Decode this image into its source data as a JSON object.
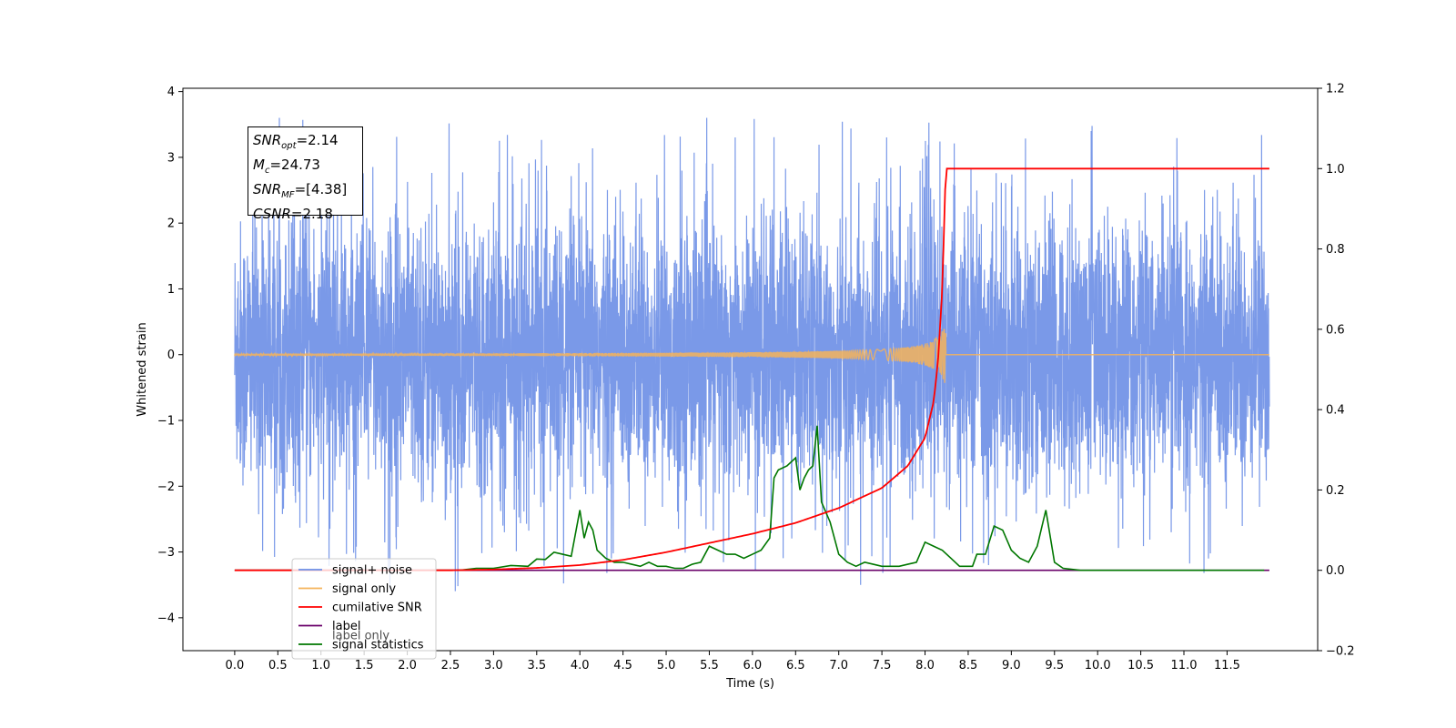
{
  "chart_data": {
    "type": "line",
    "xlabel": "Time (s)",
    "ylabel_left": "Whitened strain",
    "ylabel_right": "",
    "xlim": [
      -0.6,
      12.55
    ],
    "ylim_left": [
      -4.5,
      4.05
    ],
    "ylim_right": [
      -0.2,
      1.2
    ],
    "x_ticks": [
      "0.0",
      "0.5",
      "1.0",
      "1.5",
      "2.0",
      "2.5",
      "3.0",
      "3.5",
      "4.0",
      "4.5",
      "5.0",
      "5.5",
      "6.0",
      "6.5",
      "7.0",
      "7.5",
      "8.0",
      "8.5",
      "9.0",
      "9.5",
      "10.0",
      "10.5",
      "11.0",
      "11.5"
    ],
    "y_ticks_left": [
      "4",
      "3",
      "2",
      "1",
      "0",
      "−1",
      "−2",
      "−3",
      "−4"
    ],
    "y_ticks_right": [
      "1.2",
      "1.0",
      "0.8",
      "0.6",
      "0.4",
      "0.2",
      "0.0",
      "−0.2"
    ],
    "grid": false,
    "legend_position": "lower-left",
    "annotation": {
      "snr_opt_label": "SNR",
      "snr_opt_sub": "opt",
      "snr_opt_value": "=2.14",
      "mc_label": "M",
      "mc_sub": "c",
      "mc_value": "=24.73",
      "snr_mf_label": "SNR",
      "snr_mf_sub": "MF",
      "snr_mf_value": "=[4.38]",
      "csnr_label": "CSNR",
      "csnr_value": "=2.18"
    },
    "series": [
      {
        "name": "signal+ noise",
        "axis": "left",
        "color": "#6b8ee6",
        "style": "dense noise, approx. ±2 std with spikes to ~3.6 and ~−4.1",
        "x_range": [
          0.0,
          11.99
        ]
      },
      {
        "name": "signal only",
        "axis": "left",
        "color": "#f5b35a",
        "style": "chirp near zero, amplitude growing to ~0.5 at merger",
        "chirp_end": 8.24,
        "peak_amplitude": 0.48,
        "x_range": [
          0.0,
          11.99
        ]
      },
      {
        "name": "cumilative SNR",
        "axis": "right",
        "color": "#ff0000",
        "x": [
          0.0,
          2.5,
          3.0,
          3.5,
          4.0,
          4.5,
          5.0,
          5.5,
          6.0,
          6.5,
          7.0,
          7.5,
          7.8,
          8.0,
          8.1,
          8.15,
          8.2,
          8.24,
          9.0,
          10.0,
          11.0,
          11.99
        ],
        "y": [
          0.0,
          0.0,
          0.002,
          0.006,
          0.013,
          0.026,
          0.045,
          0.068,
          0.091,
          0.118,
          0.155,
          0.205,
          0.26,
          0.33,
          0.42,
          0.52,
          0.7,
          1.0,
          1.0,
          1.0,
          1.0,
          1.0
        ]
      },
      {
        "name": "label",
        "axis": "right",
        "color": "#6a006a",
        "x": [
          0.0,
          11.99
        ],
        "y": [
          0.0,
          0.0
        ]
      },
      {
        "name": "label only",
        "axis": "right",
        "color": "#c8a0c8",
        "x": [],
        "y": []
      },
      {
        "name": "signal statistics",
        "axis": "right",
        "color": "#007700",
        "x": [
          0.0,
          2.6,
          2.8,
          3.0,
          3.2,
          3.4,
          3.5,
          3.6,
          3.7,
          3.8,
          3.9,
          4.0,
          4.05,
          4.1,
          4.15,
          4.2,
          4.3,
          4.4,
          4.5,
          4.6,
          4.7,
          4.8,
          4.9,
          5.0,
          5.1,
          5.2,
          5.3,
          5.4,
          5.5,
          5.6,
          5.7,
          5.8,
          5.9,
          6.0,
          6.1,
          6.2,
          6.25,
          6.3,
          6.4,
          6.5,
          6.55,
          6.6,
          6.65,
          6.7,
          6.75,
          6.8,
          6.9,
          7.0,
          7.1,
          7.2,
          7.3,
          7.4,
          7.5,
          7.6,
          7.7,
          7.8,
          7.9,
          8.0,
          8.1,
          8.2,
          8.3,
          8.4,
          8.5,
          8.55,
          8.6,
          8.7,
          8.8,
          8.9,
          9.0,
          9.1,
          9.2,
          9.3,
          9.4,
          9.5,
          9.6,
          9.8,
          10.0,
          11.0,
          11.93
        ],
        "y": [
          0.0,
          0.0,
          0.005,
          0.005,
          0.012,
          0.01,
          0.028,
          0.027,
          0.045,
          0.04,
          0.035,
          0.15,
          0.08,
          0.12,
          0.1,
          0.05,
          0.03,
          0.02,
          0.02,
          0.015,
          0.01,
          0.02,
          0.01,
          0.01,
          0.005,
          0.005,
          0.015,
          0.02,
          0.06,
          0.05,
          0.04,
          0.04,
          0.03,
          0.04,
          0.05,
          0.08,
          0.23,
          0.25,
          0.26,
          0.28,
          0.2,
          0.23,
          0.25,
          0.26,
          0.36,
          0.17,
          0.12,
          0.04,
          0.02,
          0.01,
          0.02,
          0.015,
          0.01,
          0.01,
          0.01,
          0.015,
          0.02,
          0.07,
          0.06,
          0.05,
          0.03,
          0.01,
          0.01,
          0.01,
          0.04,
          0.04,
          0.11,
          0.1,
          0.05,
          0.03,
          0.02,
          0.06,
          0.15,
          0.02,
          0.005,
          0.0,
          0.0,
          0.0,
          0.0
        ]
      }
    ]
  }
}
